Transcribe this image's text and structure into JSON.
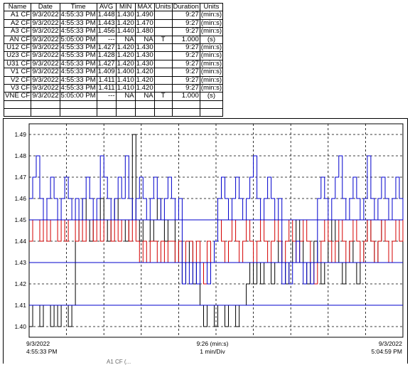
{
  "table": {
    "headers": [
      "Name",
      "Date",
      "Time",
      "AVG",
      "MIN",
      "MAX",
      "Units",
      "Duration",
      "Units"
    ],
    "rows": [
      [
        "A1 CF",
        "9/3/2022",
        "4:55:33 PM",
        "1.448",
        "1.430",
        "1.490",
        "",
        "9:27",
        "(min:s)"
      ],
      [
        "A2 CF",
        "9/3/2022",
        "4:55:33 PM",
        "1.443",
        "1.420",
        "1.470",
        "",
        "9:27",
        "(min:s)"
      ],
      [
        "A3 CF",
        "9/3/2022",
        "4:55:33 PM",
        "1.456",
        "1.440",
        "1.480",
        "",
        "9:27",
        "(min:s)"
      ],
      [
        "AN CF",
        "9/3/2022",
        "5:05:00 PM",
        "---",
        "NA",
        "NA",
        "T",
        "1.000",
        "(s)"
      ],
      [
        "U12 CF",
        "9/3/2022",
        "4:55:33 PM",
        "1.427",
        "1.420",
        "1.430",
        "",
        "9:27",
        "(min:s)"
      ],
      [
        "U23 CF",
        "9/3/2022",
        "4:55:33 PM",
        "1.428",
        "1.420",
        "1.430",
        "",
        "9:27",
        "(min:s)"
      ],
      [
        "U31 CF",
        "9/3/2022",
        "4:55:33 PM",
        "1.427",
        "1.420",
        "1.430",
        "",
        "9:27",
        "(min:s)"
      ],
      [
        "V1 CF",
        "9/3/2022",
        "4:55:33 PM",
        "1.409",
        "1.400",
        "1.420",
        "",
        "9:27",
        "(min:s)"
      ],
      [
        "V2 CF",
        "9/3/2022",
        "4:55:33 PM",
        "1.411",
        "1.410",
        "1.420",
        "",
        "9:27",
        "(min:s)"
      ],
      [
        "V3 CF",
        "9/3/2022",
        "4:55:33 PM",
        "1.411",
        "1.410",
        "1.420",
        "",
        "9:27",
        "(min:s)"
      ],
      [
        "VNE CF",
        "9/3/2022",
        "5:05:00 PM",
        "---",
        "NA",
        "NA",
        "T",
        "1.000",
        "(s)"
      ]
    ]
  },
  "chart_data": {
    "type": "line",
    "y_ticks": [
      "1.49",
      "1.48",
      "1.47",
      "1.46",
      "1.45",
      "1.44",
      "1.43",
      "1.42",
      "1.41",
      "1.40"
    ],
    "ylim": [
      1.395,
      1.495
    ],
    "grid": true,
    "x_start": {
      "date": "9/3/2022",
      "time": "4:55:33 PM"
    },
    "x_end": {
      "date": "9/3/2022",
      "time": "5:04:59 PM"
    },
    "x_center": {
      "duration": "9:26 (min:s)",
      "scale": "1 min/Div"
    },
    "series": [
      {
        "color": "#000000",
        "values": [
          1.4,
          1.41,
          1.41,
          1.4,
          1.41,
          1.41,
          1.4,
          1.41,
          1.4,
          1.41,
          1.41,
          1.4,
          1.41,
          1.44,
          1.45,
          1.46,
          1.45,
          1.44,
          1.45,
          1.45,
          1.46,
          1.45,
          1.44,
          1.45,
          1.46,
          1.45,
          1.45,
          1.44,
          1.45,
          1.49,
          1.45,
          1.44,
          1.45,
          1.45,
          1.44,
          1.45,
          1.46,
          1.45,
          1.44,
          1.45,
          1.45,
          1.43,
          1.44,
          1.42,
          1.43,
          1.44,
          1.42,
          1.43,
          1.41,
          1.4,
          1.41,
          1.41,
          1.4,
          1.41,
          1.41,
          1.4,
          1.41,
          1.41,
          1.4,
          1.41,
          1.41,
          1.42,
          1.43,
          1.42,
          1.43,
          1.42,
          1.43,
          1.43,
          1.42,
          1.43,
          1.44,
          1.43,
          1.42,
          1.43,
          1.44,
          1.45,
          1.44,
          1.43,
          1.42,
          1.43,
          1.44,
          1.43,
          1.42,
          1.43,
          1.44,
          1.45,
          1.44,
          1.43,
          1.42,
          1.43,
          1.44,
          1.43,
          1.42,
          1.43,
          1.44,
          1.45,
          1.44,
          1.43,
          1.44,
          1.45,
          1.44,
          1.43,
          1.44,
          1.45,
          1.44,
          1.45
        ]
      },
      {
        "color": "#d40000",
        "values": [
          1.44,
          1.45,
          1.45,
          1.44,
          1.45,
          1.44,
          1.45,
          1.45,
          1.44,
          1.45,
          1.44,
          1.45,
          1.45,
          1.44,
          1.45,
          1.44,
          1.45,
          1.45,
          1.44,
          1.45,
          1.44,
          1.45,
          1.45,
          1.44,
          1.45,
          1.44,
          1.45,
          1.45,
          1.44,
          1.45,
          1.44,
          1.43,
          1.44,
          1.43,
          1.44,
          1.44,
          1.43,
          1.44,
          1.43,
          1.44,
          1.44,
          1.43,
          1.44,
          1.43,
          1.44,
          1.44,
          1.43,
          1.44,
          1.43,
          1.42,
          1.44,
          1.43,
          1.44,
          1.45,
          1.44,
          1.43,
          1.44,
          1.45,
          1.44,
          1.43,
          1.44,
          1.45,
          1.44,
          1.43,
          1.44,
          1.45,
          1.44,
          1.43,
          1.44,
          1.45,
          1.44,
          1.43,
          1.44,
          1.45,
          1.44,
          1.43,
          1.44,
          1.45,
          1.44,
          1.43,
          1.42,
          1.43,
          1.44,
          1.45,
          1.44,
          1.43,
          1.44,
          1.45,
          1.44,
          1.43,
          1.44,
          1.45,
          1.44,
          1.43,
          1.44,
          1.45,
          1.44,
          1.43,
          1.44,
          1.45,
          1.44,
          1.43,
          1.44,
          1.45,
          1.44,
          1.45
        ]
      },
      {
        "color": "#0000cc",
        "values": [
          1.46,
          1.47,
          1.48,
          1.46,
          1.45,
          1.46,
          1.47,
          1.46,
          1.45,
          1.46,
          1.47,
          1.46,
          1.45,
          1.46,
          1.45,
          1.46,
          1.47,
          1.46,
          1.45,
          1.46,
          1.48,
          1.47,
          1.46,
          1.45,
          1.46,
          1.47,
          1.46,
          1.48,
          1.46,
          1.45,
          1.46,
          1.47,
          1.46,
          1.45,
          1.46,
          1.47,
          1.46,
          1.45,
          1.46,
          1.47,
          1.46,
          1.45,
          1.46,
          1.42,
          1.43,
          1.42,
          1.43,
          1.42,
          1.43,
          1.43,
          1.42,
          1.43,
          1.44,
          1.46,
          1.47,
          1.46,
          1.45,
          1.46,
          1.47,
          1.46,
          1.45,
          1.46,
          1.47,
          1.48,
          1.46,
          1.45,
          1.46,
          1.47,
          1.46,
          1.45,
          1.46,
          1.42,
          1.43,
          1.42,
          1.43,
          1.44,
          1.43,
          1.42,
          1.43,
          1.42,
          1.43,
          1.46,
          1.47,
          1.46,
          1.45,
          1.46,
          1.47,
          1.48,
          1.46,
          1.45,
          1.46,
          1.47,
          1.46,
          1.45,
          1.46,
          1.48,
          1.46,
          1.45,
          1.46,
          1.47,
          1.46,
          1.45,
          1.46,
          1.47,
          1.46,
          1.45
        ]
      },
      {
        "color": "#0000cc",
        "values": [
          1.41,
          1.41,
          1.41,
          1.41,
          1.41,
          1.41,
          1.41,
          1.41,
          1.41,
          1.41,
          1.41,
          1.41,
          1.41,
          1.41,
          1.41,
          1.41,
          1.41,
          1.41,
          1.41,
          1.41,
          1.41,
          1.41,
          1.41,
          1.41,
          1.41,
          1.41,
          1.41,
          1.41,
          1.41,
          1.41,
          1.41,
          1.41,
          1.41,
          1.41,
          1.41,
          1.41,
          1.41,
          1.41,
          1.41,
          1.41,
          1.41,
          1.41,
          1.41,
          1.41,
          1.41,
          1.41,
          1.41,
          1.41,
          1.41,
          1.41,
          1.41,
          1.41,
          1.41,
          1.41,
          1.41,
          1.41,
          1.41,
          1.41,
          1.41,
          1.41,
          1.41,
          1.41,
          1.41,
          1.41,
          1.41,
          1.41,
          1.41,
          1.41,
          1.41,
          1.41,
          1.41,
          1.41,
          1.41,
          1.41,
          1.41,
          1.41,
          1.41,
          1.41,
          1.41,
          1.41,
          1.41,
          1.41,
          1.41,
          1.41,
          1.41,
          1.41,
          1.41,
          1.41,
          1.41,
          1.41,
          1.41,
          1.41,
          1.41,
          1.41,
          1.41,
          1.41,
          1.41,
          1.41,
          1.41,
          1.41,
          1.41,
          1.41,
          1.41,
          1.41,
          1.41,
          1.41
        ]
      },
      {
        "color": "#0000cc",
        "values": [
          1.43,
          1.43,
          1.43,
          1.43,
          1.43,
          1.43,
          1.43,
          1.43,
          1.43,
          1.43,
          1.43,
          1.43,
          1.43,
          1.43,
          1.43,
          1.43,
          1.43,
          1.43,
          1.43,
          1.43,
          1.43,
          1.43,
          1.43,
          1.43,
          1.43,
          1.43,
          1.43,
          1.43,
          1.43,
          1.43,
          1.43,
          1.43,
          1.43,
          1.43,
          1.43,
          1.43,
          1.43,
          1.43,
          1.43,
          1.43,
          1.43,
          1.43,
          1.43,
          1.43,
          1.43,
          1.43,
          1.43,
          1.43,
          1.43,
          1.43,
          1.43,
          1.43,
          1.43,
          1.43,
          1.43,
          1.43,
          1.43,
          1.43,
          1.43,
          1.43,
          1.43,
          1.43,
          1.43,
          1.43,
          1.43,
          1.43,
          1.43,
          1.43,
          1.43,
          1.43,
          1.43,
          1.43,
          1.43,
          1.43,
          1.43,
          1.43,
          1.43,
          1.43,
          1.43,
          1.43,
          1.43,
          1.43,
          1.43,
          1.43,
          1.43,
          1.43,
          1.43,
          1.43,
          1.43,
          1.43,
          1.43,
          1.43,
          1.43,
          1.43,
          1.43,
          1.43,
          1.43,
          1.43,
          1.43,
          1.43,
          1.43,
          1.43,
          1.43,
          1.43,
          1.43,
          1.43
        ]
      },
      {
        "color": "#0000cc",
        "values": [
          1.45,
          1.45,
          1.45,
          1.45,
          1.45,
          1.45,
          1.45,
          1.45,
          1.45,
          1.45,
          1.45,
          1.45,
          1.45,
          1.45,
          1.45,
          1.45,
          1.45,
          1.45,
          1.45,
          1.45,
          1.45,
          1.45,
          1.45,
          1.45,
          1.45,
          1.45,
          1.45,
          1.45,
          1.45,
          1.45,
          1.45,
          1.45,
          1.45,
          1.45,
          1.45,
          1.45,
          1.45,
          1.45,
          1.45,
          1.45,
          1.45,
          1.45,
          1.45,
          1.45,
          1.45,
          1.45,
          1.45,
          1.45,
          1.45,
          1.45,
          1.45,
          1.45,
          1.45,
          1.45,
          1.45,
          1.45,
          1.45,
          1.45,
          1.45,
          1.45,
          1.45,
          1.45,
          1.45,
          1.45,
          1.45,
          1.45,
          1.45,
          1.45,
          1.45,
          1.45,
          1.45,
          1.45,
          1.45,
          1.45,
          1.45,
          1.45,
          1.45,
          1.45,
          1.45,
          1.45,
          1.45,
          1.45,
          1.45,
          1.45,
          1.45,
          1.45,
          1.45,
          1.45,
          1.45,
          1.45,
          1.45,
          1.45,
          1.45,
          1.45,
          1.45,
          1.45,
          1.45,
          1.45,
          1.45,
          1.45,
          1.45,
          1.45,
          1.45,
          1.45,
          1.45,
          1.45
        ]
      }
    ]
  },
  "bottom_cut_text": "A1 CF (..."
}
